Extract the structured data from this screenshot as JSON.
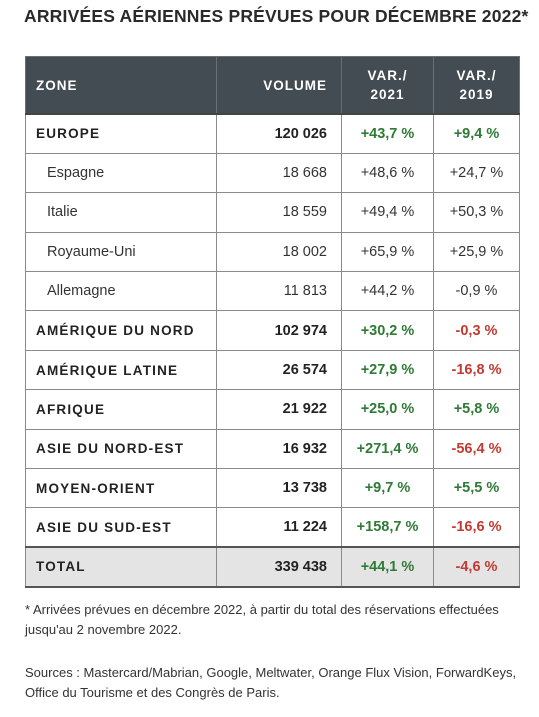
{
  "title": "ARRIVÉES AÉRIENNES PRÉVUES POUR DÉCEMBRE 2022*",
  "table": {
    "headers": {
      "zone": "ZONE",
      "volume": "VOLUME",
      "var2021_line1": "VAR./",
      "var2021_line2": "2021",
      "var2019_line1": "VAR./",
      "var2019_line2": "2019"
    },
    "rows": [
      {
        "zone": "EUROPE",
        "volume": "120 026",
        "var2021": "+43,7 %",
        "var2019": "+9,4 %"
      },
      {
        "zone": "Espagne",
        "volume": "18 668",
        "var2021": "+48,6 %",
        "var2019": "+24,7 %"
      },
      {
        "zone": "Italie",
        "volume": "18 559",
        "var2021": "+49,4 %",
        "var2019": "+50,3 %"
      },
      {
        "zone": "Royaume-Uni",
        "volume": "18 002",
        "var2021": "+65,9 %",
        "var2019": "+25,9 %"
      },
      {
        "zone": "Allemagne",
        "volume": "11 813",
        "var2021": "+44,2 %",
        "var2019": "-0,9 %"
      },
      {
        "zone": "AMÉRIQUE DU NORD",
        "volume": "102 974",
        "var2021": "+30,2 %",
        "var2019": "-0,3 %"
      },
      {
        "zone": "AMÉRIQUE LATINE",
        "volume": "26 574",
        "var2021": "+27,9 %",
        "var2019": "-16,8 %"
      },
      {
        "zone": "AFRIQUE",
        "volume": "21 922",
        "var2021": "+25,0 %",
        "var2019": "+5,8 %"
      },
      {
        "zone": "ASIE DU NORD-EST",
        "volume": "16 932",
        "var2021": "+271,4 %",
        "var2019": "-56,4 %"
      },
      {
        "zone": "MOYEN-ORIENT",
        "volume": "13 738",
        "var2021": "+9,7 %",
        "var2019": "+5,5 %"
      },
      {
        "zone": "ASIE DU SUD-EST",
        "volume": "11 224",
        "var2021": "+158,7 %",
        "var2019": "-16,6 %"
      },
      {
        "zone": "TOTAL",
        "volume": "339 438",
        "var2021": "+44,1 %",
        "var2019": "-4,6 %"
      }
    ]
  },
  "footnote": "* Arrivées prévues en décembre 2022, à partir du total des réservations effectuées jusqu'au 2 novembre 2022.",
  "sources": "Sources : Mastercard/Mabrian, Google, Meltwater, Orange Flux Vision, ForwardKeys, Office du Tourisme et des Congrès de Paris.",
  "colors": {
    "header_bg": "#434b53",
    "positive": "#2f7a36",
    "negative": "#c23a32",
    "total_bg": "#e4e4e4"
  }
}
